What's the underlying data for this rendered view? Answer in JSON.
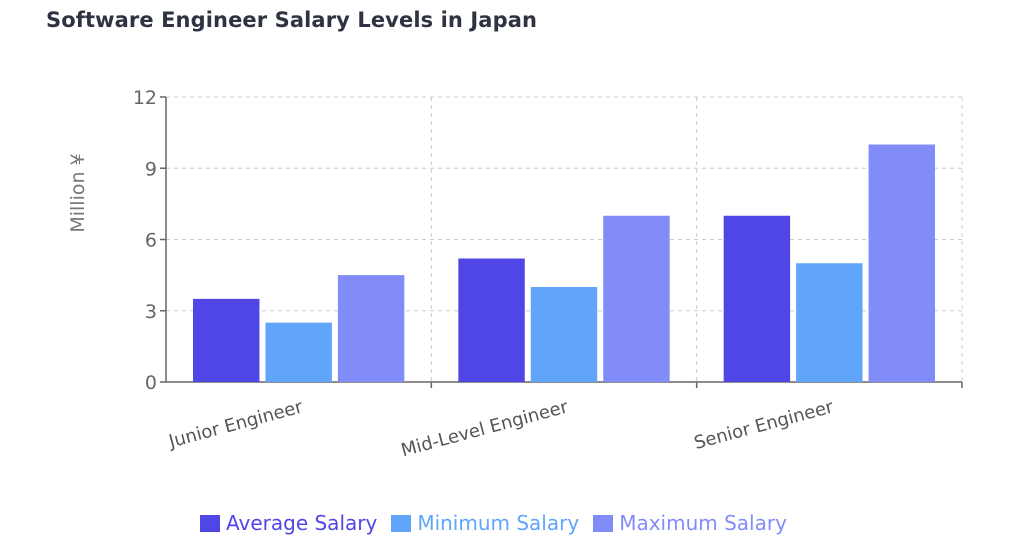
{
  "chart_data": {
    "type": "bar",
    "title": "Software Engineer Salary Levels in Japan",
    "xlabel": "",
    "ylabel": "Million ¥",
    "ylim": [
      0,
      12
    ],
    "yticks": [
      0,
      3,
      6,
      9,
      12
    ],
    "grid": true,
    "legend_position": "bottom",
    "categories": [
      "Junior Engineer",
      "Mid-Level Engineer",
      "Senior Engineer"
    ],
    "series": [
      {
        "name": "Average Salary",
        "color": "#4f46e5",
        "values": [
          3.5,
          5.2,
          7.0
        ]
      },
      {
        "name": "Minimum Salary",
        "color": "#60a5fa",
        "values": [
          2.5,
          4.0,
          5.0
        ]
      },
      {
        "name": "Maximum Salary",
        "color": "#818cf8",
        "values": [
          4.5,
          7.0,
          10.0
        ]
      }
    ]
  }
}
